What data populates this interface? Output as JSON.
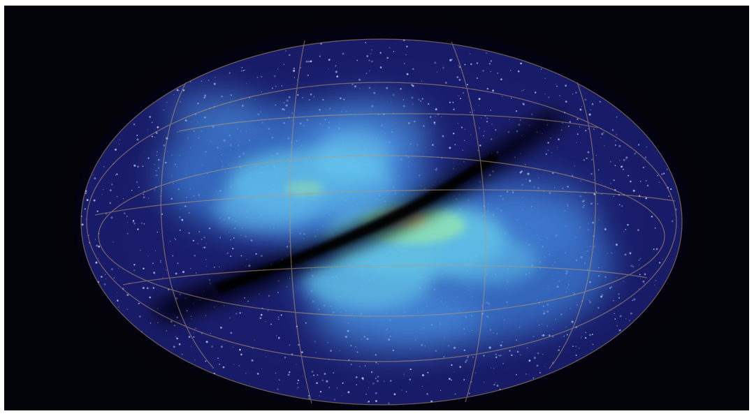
{
  "image": {
    "subject": "",
    "colors": {
      "background": "#03030a",
      "border": "#ffffff",
      "halo": "#0b0b3d",
      "disk": "#2a2f8f",
      "diffuse_glow": "#4fa0e8",
      "dense_cyan": "#6fd2ec",
      "core_green": "#8ee2b4",
      "core_hot": "#d8d28a",
      "stars": "#c8d4ff",
      "grid_lines": "#b89a70",
      "dust_lane": "#02020a"
    }
  }
}
